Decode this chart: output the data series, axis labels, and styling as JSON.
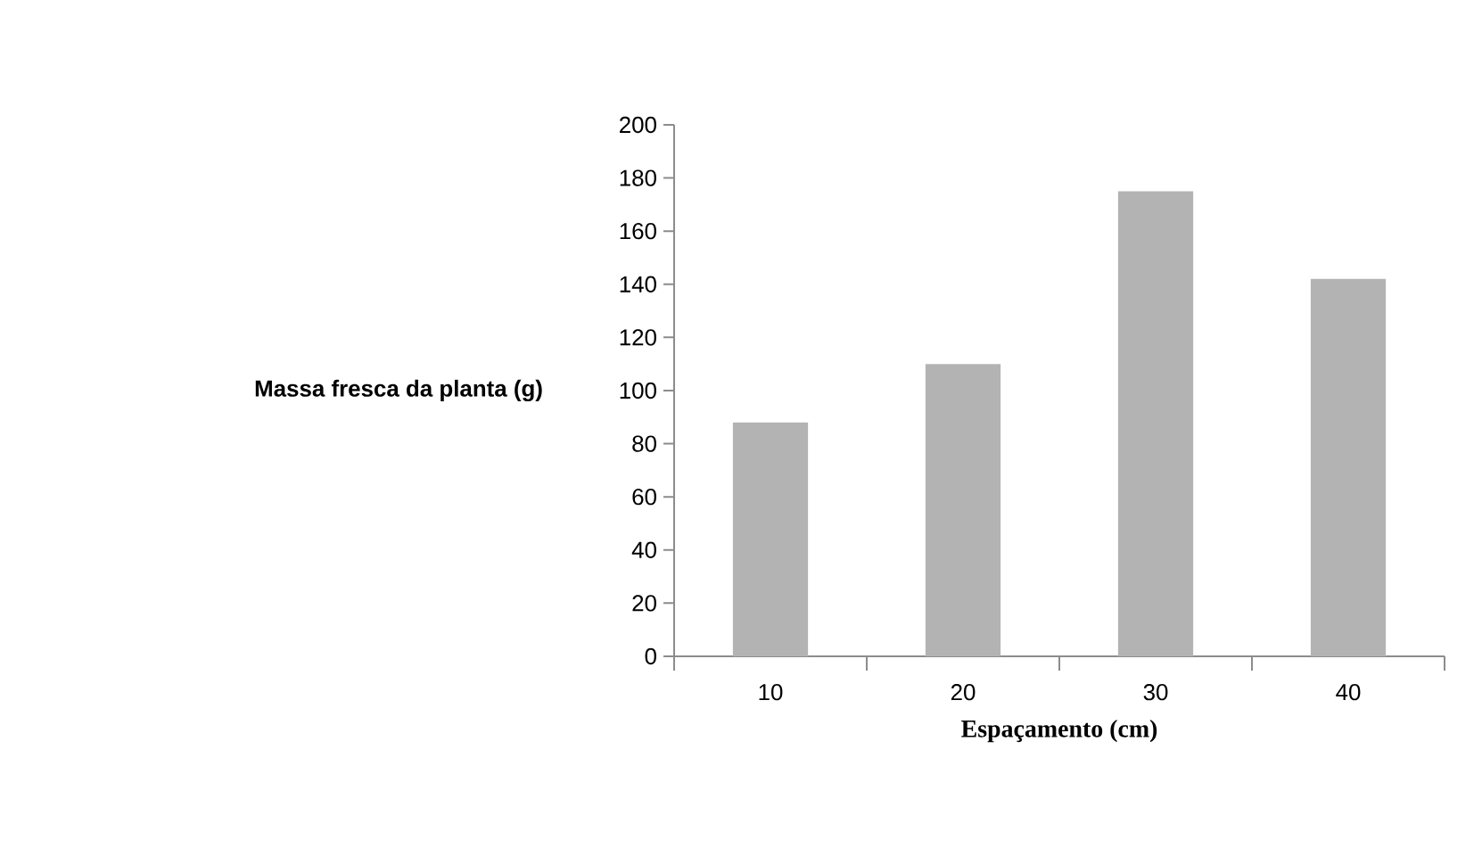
{
  "chart_data": {
    "type": "bar",
    "xlabel": "Espaçamento (cm)",
    "ylabel": "Massa fresca da planta (g)",
    "categories": [
      "10",
      "20",
      "30",
      "40"
    ],
    "values": [
      88,
      110,
      175,
      142
    ],
    "color": "#b3b3b3",
    "ylim": [
      0,
      200
    ],
    "yticks": [
      0,
      20,
      40,
      60,
      80,
      100,
      120,
      140,
      160,
      180,
      200
    ],
    "grid": false
  }
}
